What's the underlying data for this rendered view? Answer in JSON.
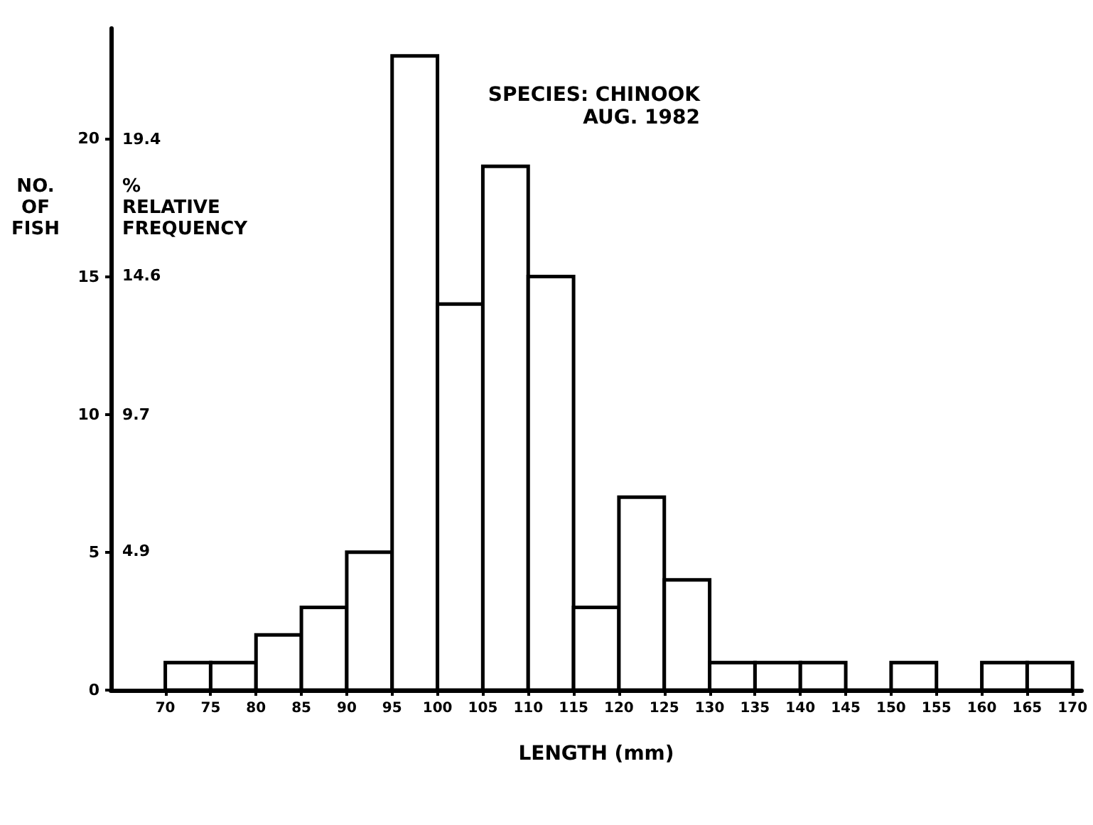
{
  "chart_data": {
    "type": "histogram",
    "title": "SPECIES: CHINOOK",
    "subtitle": "AUG. 1982",
    "xlabel": "LENGTH (mm)",
    "ylabel": "NO. OF FISH",
    "y2label": "% RELATIVE FREQUENCY",
    "bins": [
      70,
      75,
      80,
      85,
      90,
      95,
      100,
      105,
      110,
      115,
      120,
      125,
      130,
      135,
      140,
      145,
      150,
      155,
      160,
      165,
      170
    ],
    "values": [
      1,
      1,
      2,
      3,
      5,
      23,
      14,
      19,
      15,
      3,
      7,
      4,
      1,
      1,
      1,
      0,
      1,
      0,
      1,
      1
    ],
    "xlim": [
      64,
      171
    ],
    "xticks": [
      70,
      75,
      80,
      85,
      90,
      95,
      100,
      105,
      110,
      115,
      120,
      125,
      130,
      135,
      140,
      145,
      150,
      155,
      160,
      165,
      170
    ],
    "ylim": [
      0,
      24
    ],
    "yticks": [
      0,
      5,
      10,
      15,
      20
    ],
    "y2lim": [
      0,
      23.3
    ],
    "y2ticks": [
      4.9,
      9.7,
      14.6,
      19.4
    ],
    "grid": false
  }
}
